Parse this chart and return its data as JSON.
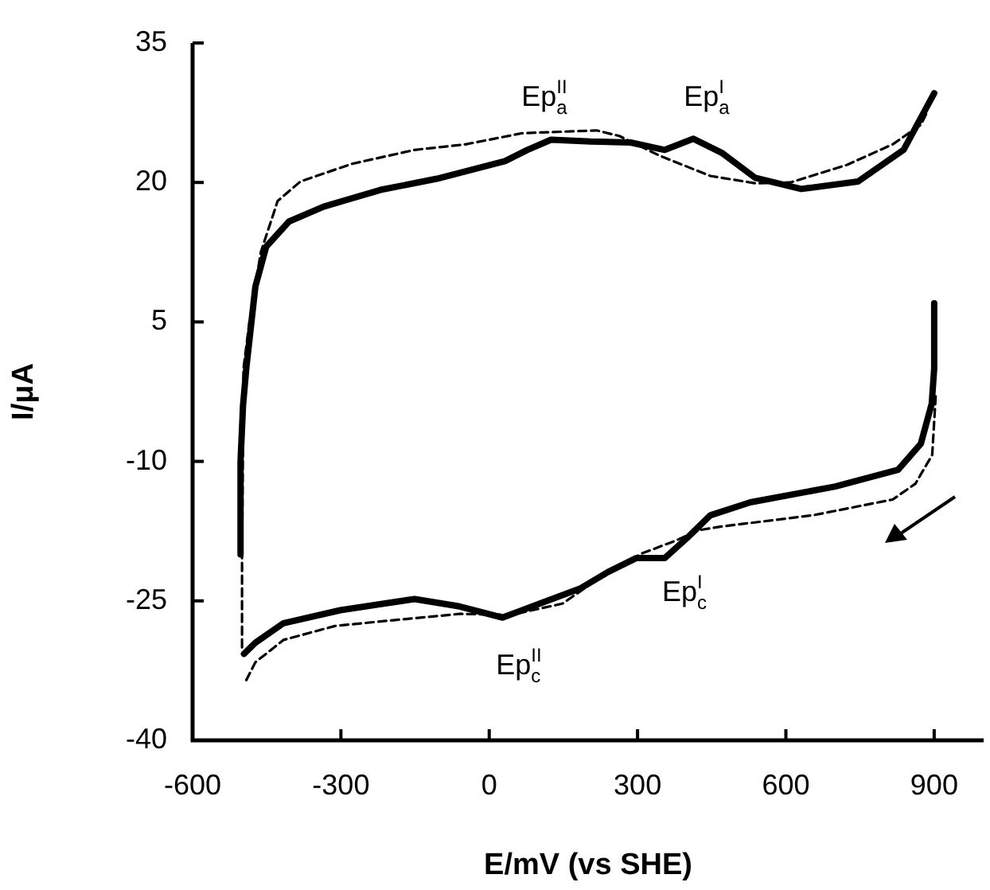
{
  "chart_data": {
    "type": "line",
    "xlabel": "E/mV (vs SHE)",
    "ylabel": "I/μA",
    "xlim": [
      -600,
      1000
    ],
    "xticks": [
      -600,
      -300,
      0,
      300,
      600,
      900
    ],
    "ylim": [
      -40,
      35
    ],
    "yticks": [
      -40,
      -25,
      -10,
      5,
      20,
      35
    ],
    "grid": false,
    "legend": false,
    "marker": "none",
    "series": [
      {
        "color": "#000000",
        "line_style": "solid",
        "x": [
          -503,
          -503,
          -498,
          -491,
          -473,
          -451,
          -405,
          -335,
          -220,
          -106,
          32,
          77,
          125,
          205,
          286,
          355,
          413,
          470,
          538,
          631,
          746,
          838,
          900,
          null,
          900,
          900,
          895,
          873,
          827,
          700,
          528,
          447,
          401,
          355,
          297,
          240,
          183,
          102,
          27,
          -60,
          -151,
          -301,
          -416,
          -473,
          -496
        ],
        "values": [
          -20,
          -10,
          -4,
          0.2,
          8.8,
          13.1,
          15.8,
          17.4,
          19.2,
          20.4,
          22.3,
          23.5,
          24.6,
          24.4,
          24.3,
          23.5,
          24.7,
          23.2,
          20.5,
          19.3,
          20.1,
          23.5,
          29.6,
          null,
          7,
          0,
          -3.8,
          -8.1,
          -10.9,
          -12.7,
          -14.4,
          -15.8,
          -18.2,
          -20.4,
          -20.4,
          -21.9,
          -23.7,
          -25.3,
          -26.8,
          -25.6,
          -24.8,
          -26,
          -27.4,
          -29.5,
          -30.7
        ]
      },
      {
        "color": "#000000",
        "line_style": "dashed",
        "x": [
          -500,
          -500,
          -497,
          -485,
          -462,
          -428,
          -382,
          -278,
          -151,
          -48,
          67,
          217,
          263,
          344,
          447,
          540,
          609,
          724,
          816,
          873,
          885,
          null,
          903,
          896,
          862,
          816,
          654,
          470,
          424,
          378,
          309,
          240,
          148,
          44,
          -60,
          -198,
          -312,
          -416,
          -473,
          -494
        ],
        "values": [
          -30,
          -20,
          0,
          5,
          12.5,
          18,
          20.1,
          22,
          23.5,
          24.1,
          25.3,
          25.6,
          25,
          22.9,
          20.7,
          19.9,
          20,
          21.9,
          24.1,
          26.2,
          27.5,
          null,
          -3,
          -9.3,
          -12.4,
          -14.1,
          -15.8,
          -17,
          -17.4,
          -18.5,
          -19.9,
          -21.9,
          -25.3,
          -26.5,
          -26.4,
          -27.1,
          -27.7,
          -29.2,
          -31.6,
          -33.8
        ]
      }
    ],
    "annotations": [
      "Ep$_{a}$$^{II}$",
      "Ep$_{a}$$^{I}$",
      "Ep$_{c}$$^{I}$",
      "Ep$_{c}$$^{II}$"
    ]
  }
}
